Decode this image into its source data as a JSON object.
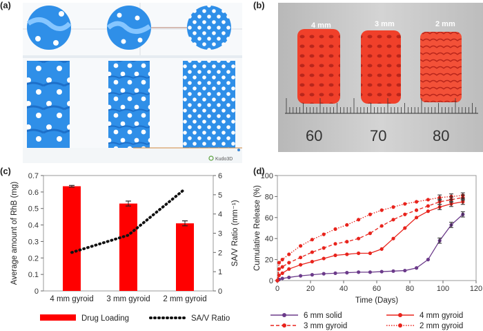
{
  "panels": {
    "a": {
      "label": "(a)",
      "logo_text": "Kudo3D"
    },
    "b": {
      "label": "(b)",
      "sizes": [
        "4 mm",
        "3 mm",
        "2 mm"
      ],
      "ruler_numbers": [
        "60",
        "70",
        "80"
      ]
    },
    "c": {
      "label": "(c)"
    },
    "d": {
      "label": "(d)"
    }
  },
  "colors": {
    "model_blue": "#2f8fe8",
    "print_red": "#f0402a",
    "bar_red": "#ff0000",
    "solid_purple": "#6b3a8a",
    "gyroid_red": "#e8231c"
  },
  "chart_data": [
    {
      "type": "bar",
      "panel": "c",
      "categories": [
        "4 mm gyroid",
        "3 mm gyroid",
        "2 mm gyroid"
      ],
      "series": [
        {
          "name": "Drug Loading",
          "axis": "left",
          "values": [
            0.635,
            0.53,
            0.41
          ],
          "errors": [
            0.005,
            0.015,
            0.015
          ]
        },
        {
          "name": "SA/V Ratio",
          "axis": "right",
          "style": "dotted-line",
          "values": [
            2.0,
            2.9,
            5.3
          ]
        }
      ],
      "ylabel": "Average amount of RhB (mg)",
      "ylim": [
        0,
        0.7
      ],
      "yticks": [
        "0",
        "0.1",
        "0.2",
        "0.3",
        "0.4",
        "0.5",
        "0.6",
        "0.7"
      ],
      "y2label": "SA/V Ratio (mm⁻¹)",
      "y2lim": [
        0,
        6
      ],
      "y2ticks": [
        "0",
        "1",
        "2",
        "3",
        "4",
        "5",
        "6"
      ],
      "legend": [
        "Drug Loading",
        "SA/V Ratio"
      ],
      "legend_position": "bottom",
      "grid": false
    },
    {
      "type": "line",
      "panel": "d",
      "xlabel": "Time (Days)",
      "ylabel": "Cumulative Release (%)",
      "xlim": [
        0,
        120
      ],
      "ylim": [
        0,
        100
      ],
      "xticks": [
        "0",
        "20",
        "40",
        "60",
        "80",
        "100",
        "120"
      ],
      "yticks": [
        "0",
        "20",
        "40",
        "60",
        "80",
        "100"
      ],
      "legend_position": "bottom",
      "grid": false,
      "series": [
        {
          "name": "6 mm solid",
          "x": [
            0,
            1,
            3,
            7,
            14,
            21,
            28,
            35,
            42,
            49,
            56,
            63,
            70,
            77,
            84,
            91,
            98,
            105,
            112
          ],
          "y": [
            0,
            1,
            2,
            3,
            4.5,
            5.5,
            6.5,
            7,
            7.5,
            8,
            8,
            8.5,
            9,
            9.5,
            12,
            20,
            38,
            53,
            63
          ]
        },
        {
          "name": "4 mm gyroid",
          "x": [
            0,
            1,
            3,
            7,
            14,
            21,
            28,
            35,
            42,
            49,
            56,
            63,
            70,
            77,
            84,
            91,
            98,
            105,
            112
          ],
          "y": [
            0,
            5,
            7,
            11,
            15,
            18,
            21,
            24,
            25,
            26,
            26,
            30,
            40,
            50,
            60,
            66,
            70,
            73,
            75
          ]
        },
        {
          "name": "3 mm gyroid",
          "x": [
            0,
            1,
            3,
            7,
            14,
            21,
            28,
            35,
            42,
            49,
            56,
            63,
            70,
            77,
            84,
            91,
            98,
            105,
            112
          ],
          "y": [
            0,
            11,
            13,
            17,
            22,
            27,
            31,
            35,
            37,
            40,
            45,
            52,
            58,
            63,
            67,
            71,
            75,
            77,
            79
          ]
        },
        {
          "name": "2 mm gyroid",
          "x": [
            0,
            1,
            3,
            7,
            14,
            21,
            28,
            35,
            42,
            49,
            56,
            63,
            70,
            77,
            84,
            91,
            98,
            105,
            112
          ],
          "y": [
            0,
            17,
            20,
            25,
            33,
            39,
            44,
            49,
            53,
            58,
            63,
            67,
            70,
            73,
            75,
            77,
            79,
            80,
            81
          ]
        }
      ]
    }
  ]
}
